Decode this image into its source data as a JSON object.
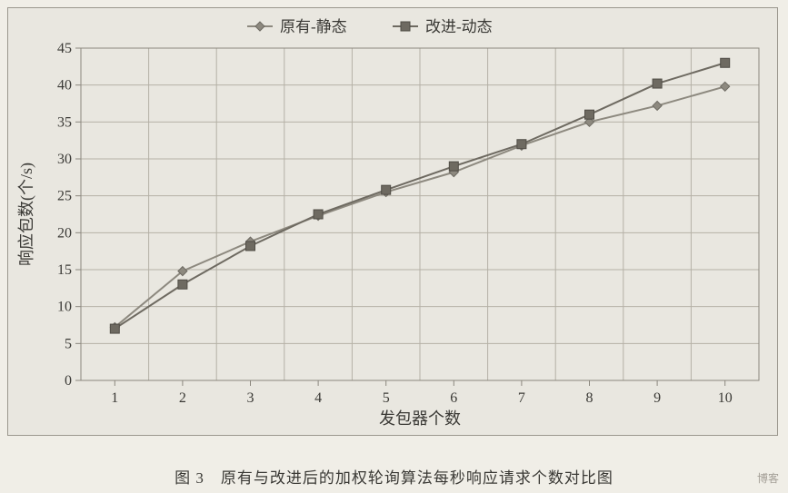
{
  "chart": {
    "type": "line",
    "background_color": "#e9e7e0",
    "plot_border_color": "#8b877e",
    "grid_color": "#b5b1a6",
    "grid_line_width": 1,
    "tick_color": "#8b877e",
    "axis_font_size": 16,
    "label_font_size": 18,
    "x": {
      "label": "发包器个数",
      "categories": [
        "1",
        "2",
        "3",
        "4",
        "5",
        "6",
        "7",
        "8",
        "9",
        "10"
      ],
      "lim": [
        0.5,
        10.5
      ]
    },
    "y": {
      "label": "响应包数(个/s)",
      "lim": [
        0,
        45
      ],
      "tick_step": 5
    },
    "legend": {
      "position": "top-center",
      "font_size": 17,
      "items": [
        {
          "key": "series1",
          "label": "原有-静态"
        },
        {
          "key": "series2",
          "label": "改进-动态"
        }
      ]
    },
    "series": {
      "series1": {
        "name": "原有-静态",
        "marker": "diamond",
        "marker_size": 10,
        "marker_fill": "#8d897f",
        "marker_stroke": "#6d6a62",
        "line_color": "#8d897f",
        "line_width": 2,
        "x": [
          1,
          2,
          3,
          4,
          5,
          6,
          7,
          8,
          9,
          10
        ],
        "y": [
          7.2,
          14.8,
          18.8,
          22.3,
          25.5,
          28.2,
          31.8,
          35.0,
          37.2,
          39.8
        ]
      },
      "series2": {
        "name": "改进-动态",
        "marker": "square",
        "marker_size": 10,
        "marker_fill": "#6e6a61",
        "marker_stroke": "#4f4c45",
        "line_color": "#6e6a61",
        "line_width": 2,
        "x": [
          1,
          2,
          3,
          4,
          5,
          6,
          7,
          8,
          9,
          10
        ],
        "y": [
          7.0,
          13.0,
          18.2,
          22.5,
          25.8,
          29.0,
          32.0,
          36.0,
          40.2,
          43.0
        ]
      }
    }
  },
  "caption": "图 3　原有与改进后的加权轮询算法每秒响应请求个数对比图",
  "watermark": "博客"
}
